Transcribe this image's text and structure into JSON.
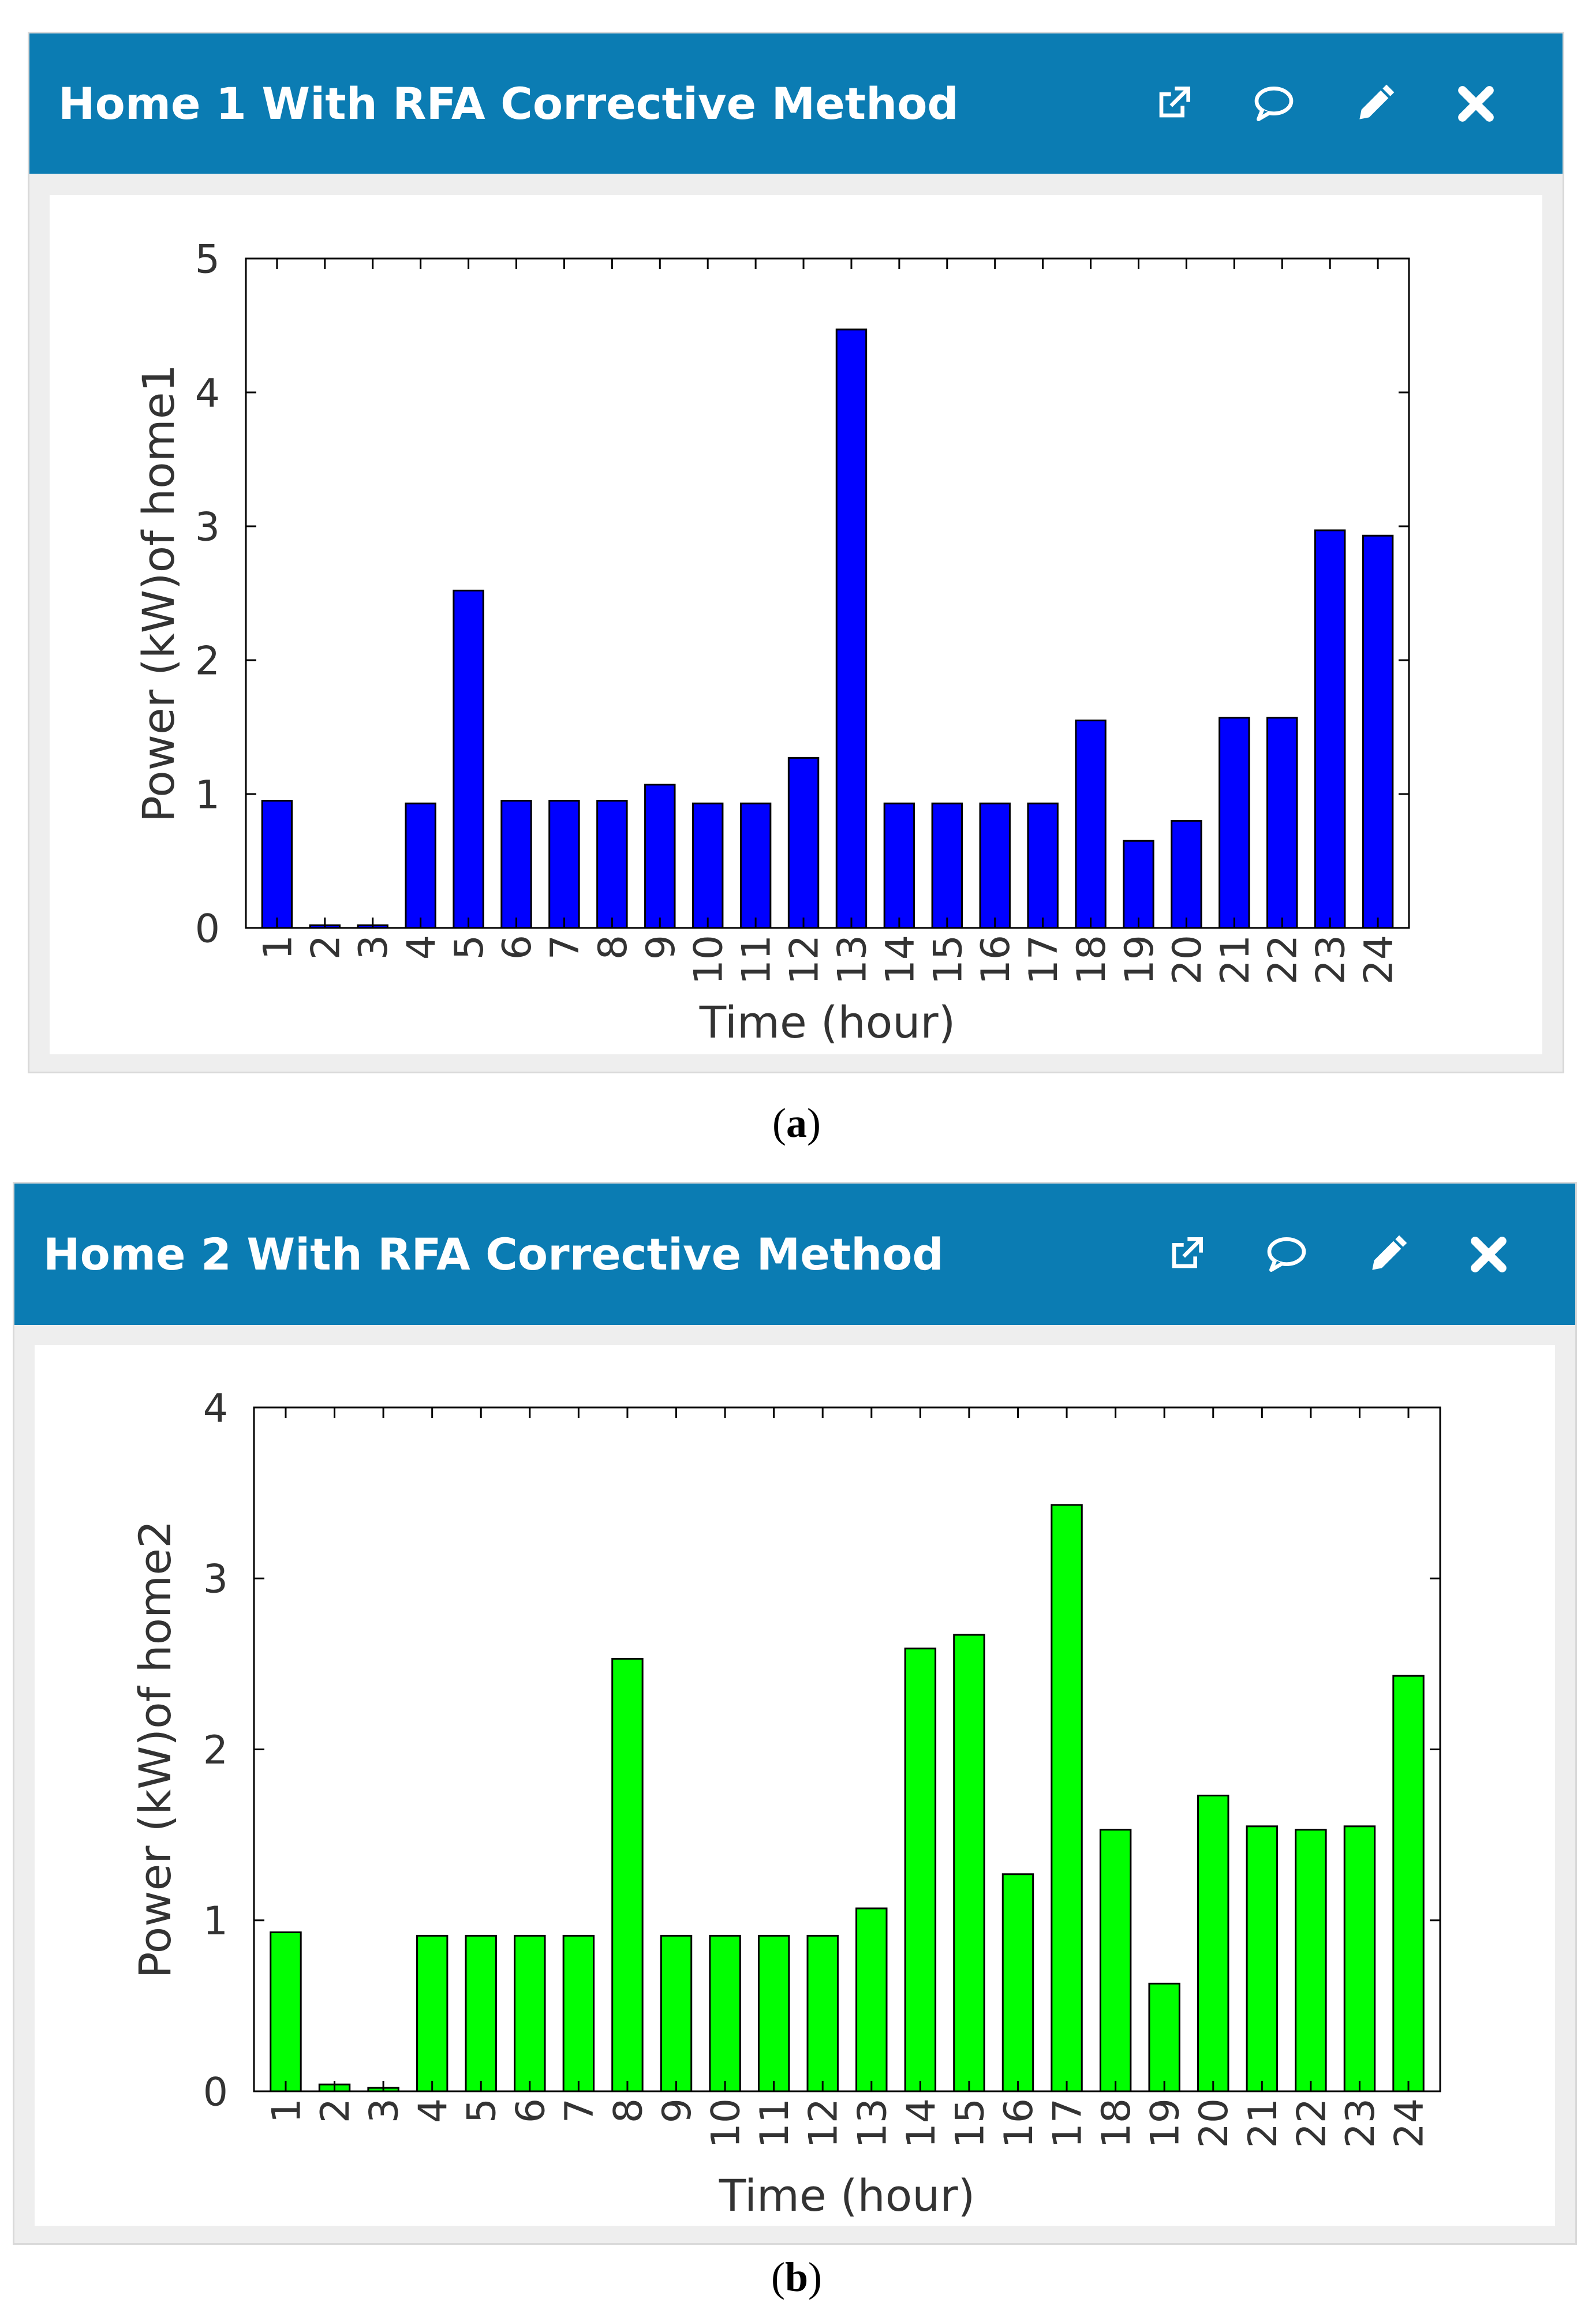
{
  "panels": [
    {
      "title": "Home 1 With RFA Corrective Method",
      "caption_letter": "a",
      "icons": [
        "external-link-icon",
        "comment-icon",
        "pencil-icon",
        "close-icon"
      ]
    },
    {
      "title": "Home 2 With RFA Corrective Method",
      "caption_letter": "b",
      "icons": [
        "external-link-icon",
        "comment-icon",
        "pencil-icon",
        "close-icon"
      ]
    }
  ],
  "colors": {
    "header": "#0b7cb3",
    "home1_bar": "#0000ff",
    "home2_bar": "#00ff00",
    "axis": "#000000"
  },
  "chart_data": [
    {
      "type": "bar",
      "title": "Home 1 With RFA Corrective Method",
      "xlabel": "Time (hour)",
      "ylabel": "Power (kW)of home1",
      "categories": [
        "1",
        "2",
        "3",
        "4",
        "5",
        "6",
        "7",
        "8",
        "9",
        "10",
        "11",
        "12",
        "13",
        "14",
        "15",
        "16",
        "17",
        "18",
        "19",
        "20",
        "21",
        "22",
        "23",
        "24"
      ],
      "values": [
        0.95,
        0.02,
        0.02,
        0.93,
        2.52,
        0.95,
        0.95,
        0.95,
        1.07,
        0.93,
        0.93,
        1.27,
        4.47,
        0.93,
        0.93,
        0.93,
        0.93,
        1.55,
        0.65,
        0.8,
        1.57,
        1.57,
        2.97,
        2.93
      ],
      "yticks": [
        0,
        1,
        2,
        3,
        4,
        5
      ],
      "ylim": [
        0,
        5
      ],
      "bar_color": "#0000ff",
      "grid": false
    },
    {
      "type": "bar",
      "title": "Home 2 With RFA Corrective Method",
      "xlabel": "Time (hour)",
      "ylabel": "Power (kW)of home2",
      "categories": [
        "1",
        "2",
        "3",
        "4",
        "5",
        "6",
        "7",
        "8",
        "9",
        "10",
        "11",
        "12",
        "13",
        "14",
        "15",
        "16",
        "17",
        "18",
        "19",
        "20",
        "21",
        "22",
        "23",
        "24"
      ],
      "values": [
        0.93,
        0.04,
        0.02,
        0.91,
        0.91,
        0.91,
        0.91,
        2.53,
        0.91,
        0.91,
        0.91,
        0.91,
        1.07,
        2.59,
        2.67,
        1.27,
        3.43,
        1.53,
        0.63,
        1.73,
        1.55,
        1.53,
        1.55,
        2.43
      ],
      "yticks": [
        0,
        1,
        2,
        3,
        4
      ],
      "ylim": [
        0,
        4
      ],
      "bar_color": "#00ff00",
      "grid": false
    }
  ]
}
